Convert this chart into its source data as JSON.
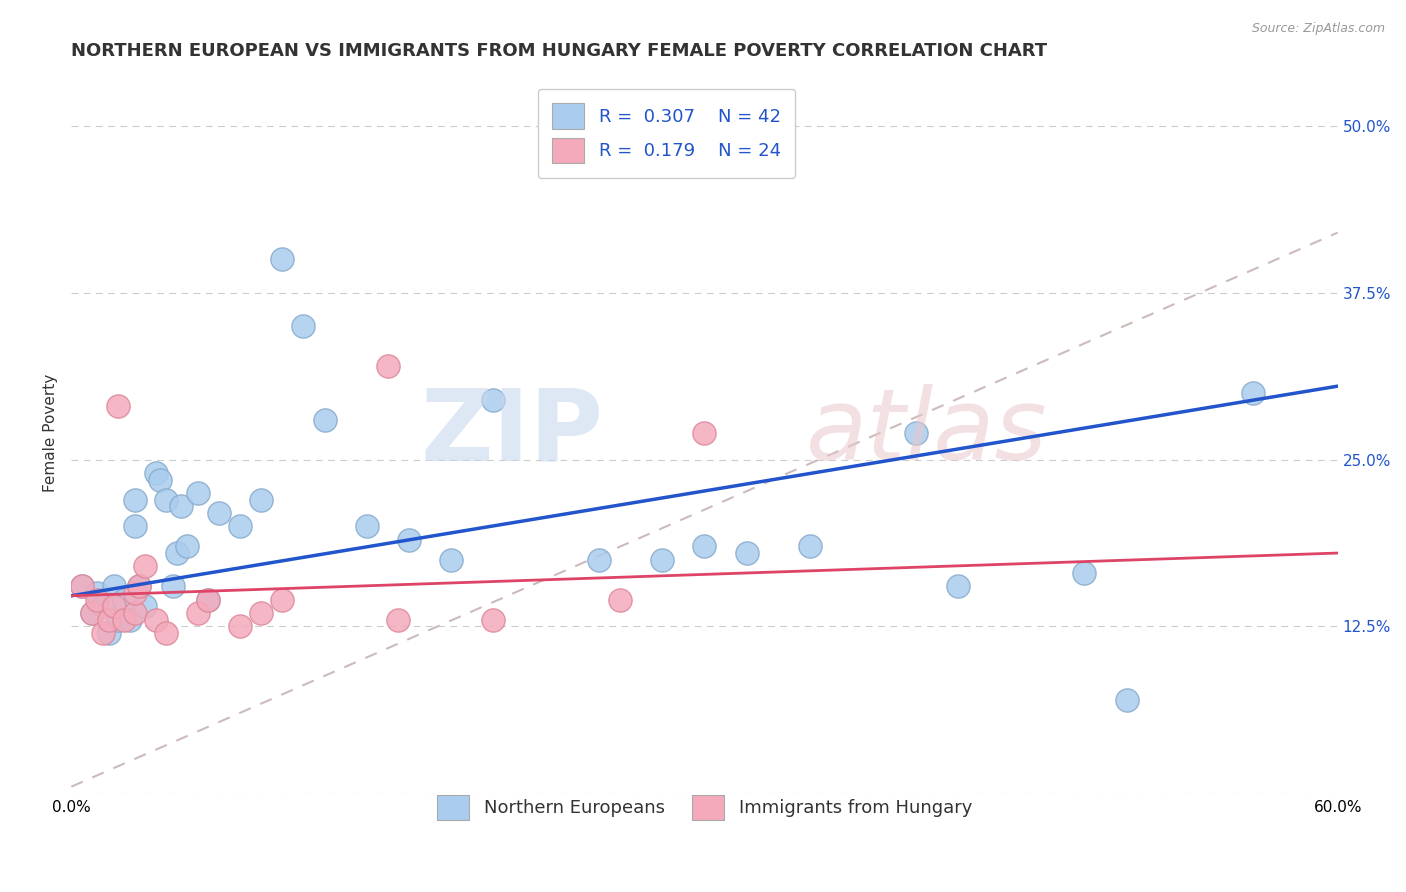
{
  "title": "NORTHERN EUROPEAN VS IMMIGRANTS FROM HUNGARY FEMALE POVERTY CORRELATION CHART",
  "source": "Source: ZipAtlas.com",
  "ylabel": "Female Poverty",
  "xlim": [
    0.0,
    0.6
  ],
  "ylim": [
    0.0,
    0.54
  ],
  "xticks": [
    0.0,
    0.1,
    0.2,
    0.3,
    0.4,
    0.5,
    0.6
  ],
  "ytick_labels_right": [
    "50.0%",
    "37.5%",
    "25.0%",
    "12.5%",
    ""
  ],
  "yticks_right": [
    0.5,
    0.375,
    0.25,
    0.125,
    0.0
  ],
  "grid_color": "#cccccc",
  "blue_R": 0.307,
  "blue_N": 42,
  "pink_R": 0.179,
  "pink_N": 24,
  "blue_color": "#aaccee",
  "pink_color": "#f4aabb",
  "blue_edge_color": "#88aacc",
  "pink_edge_color": "#dd8899",
  "blue_line_color": "#2255cc",
  "pink_line_color": "#dd4466",
  "dashed_line_color": "#ccbbbb",
  "blue_scatter_x": [
    0.005,
    0.01,
    0.012,
    0.015,
    0.018,
    0.02,
    0.022,
    0.025,
    0.028,
    0.03,
    0.03,
    0.032,
    0.035,
    0.04,
    0.042,
    0.045,
    0.048,
    0.05,
    0.052,
    0.055,
    0.06,
    0.065,
    0.07,
    0.08,
    0.09,
    0.1,
    0.11,
    0.12,
    0.14,
    0.16,
    0.18,
    0.2,
    0.25,
    0.28,
    0.3,
    0.32,
    0.35,
    0.4,
    0.42,
    0.48,
    0.5,
    0.56
  ],
  "blue_scatter_y": [
    0.155,
    0.135,
    0.15,
    0.14,
    0.12,
    0.155,
    0.13,
    0.145,
    0.13,
    0.22,
    0.2,
    0.155,
    0.14,
    0.24,
    0.235,
    0.22,
    0.155,
    0.18,
    0.215,
    0.185,
    0.225,
    0.145,
    0.21,
    0.2,
    0.22,
    0.4,
    0.35,
    0.28,
    0.2,
    0.19,
    0.175,
    0.295,
    0.175,
    0.175,
    0.185,
    0.18,
    0.185,
    0.27,
    0.155,
    0.165,
    0.07,
    0.3
  ],
  "pink_scatter_x": [
    0.005,
    0.01,
    0.012,
    0.015,
    0.018,
    0.02,
    0.022,
    0.025,
    0.03,
    0.03,
    0.032,
    0.035,
    0.04,
    0.045,
    0.06,
    0.065,
    0.08,
    0.09,
    0.1,
    0.15,
    0.155,
    0.2,
    0.26,
    0.3
  ],
  "pink_scatter_y": [
    0.155,
    0.135,
    0.145,
    0.12,
    0.13,
    0.14,
    0.29,
    0.13,
    0.135,
    0.15,
    0.155,
    0.17,
    0.13,
    0.12,
    0.135,
    0.145,
    0.125,
    0.135,
    0.145,
    0.32,
    0.13,
    0.13,
    0.145,
    0.27
  ],
  "legend_blue_label": "R =  0.307    N = 42",
  "legend_pink_label": "R =  0.179    N = 24",
  "legend_blue_marker_color": "#aaccee",
  "legend_pink_marker_color": "#f4aabb",
  "bottom_legend_blue": "Northern Europeans",
  "bottom_legend_pink": "Immigrants from Hungary",
  "title_fontsize": 13,
  "axis_label_fontsize": 11,
  "tick_fontsize": 11,
  "legend_fontsize": 13
}
